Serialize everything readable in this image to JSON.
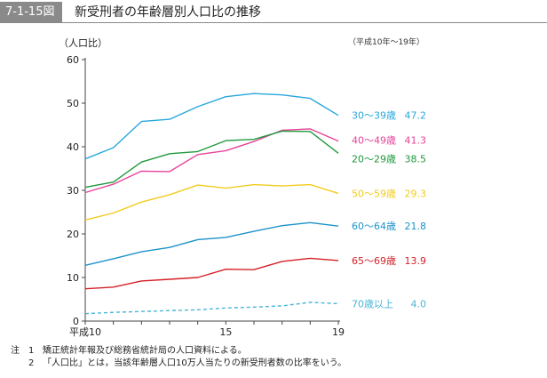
{
  "header": {
    "figure_id": "7-1-15図",
    "title": "新受刑者の年齢層別人口比の推移"
  },
  "period_note": "（平成10年～19年）",
  "chart_data": {
    "type": "line",
    "title": "新受刑者の年齢層別人口比の推移",
    "ylabel": "（人口比）",
    "ylim": [
      0,
      60
    ],
    "yticks": [
      "0",
      "10",
      "20",
      "30",
      "40",
      "50",
      "60"
    ],
    "x": [
      10,
      11,
      12,
      13,
      14,
      15,
      16,
      17,
      18,
      19
    ],
    "xticks": [
      {
        "x": 10,
        "label": "平成10"
      },
      {
        "x": 15,
        "label": "15"
      },
      {
        "x": 19,
        "label": "19"
      }
    ],
    "series": [
      {
        "name": "30～39歳",
        "end_label": "47.2",
        "color": "#2aa7dd",
        "dashed": false,
        "values": [
          37.2,
          39.8,
          45.8,
          46.3,
          49.2,
          51.5,
          52.2,
          51.9,
          51.1,
          47.2
        ]
      },
      {
        "name": "40～49歳",
        "end_label": "41.3",
        "color": "#e8429a",
        "dashed": false,
        "values": [
          29.5,
          31.4,
          34.4,
          34.3,
          38.2,
          39.1,
          41.2,
          43.8,
          44.1,
          41.3
        ]
      },
      {
        "name": "20～29歳",
        "end_label": "38.5",
        "color": "#1f9a3e",
        "dashed": false,
        "values": [
          30.7,
          31.9,
          36.5,
          38.4,
          38.9,
          41.4,
          41.7,
          43.6,
          43.5,
          38.5
        ]
      },
      {
        "name": "50～59歳",
        "end_label": "29.3",
        "color": "#f2cc1e",
        "dashed": false,
        "values": [
          23.2,
          24.8,
          27.3,
          29.0,
          31.2,
          30.5,
          31.3,
          31.0,
          31.3,
          29.3
        ]
      },
      {
        "name": "60～64歳",
        "end_label": "21.8",
        "color": "#1e93c9",
        "dashed": false,
        "values": [
          12.8,
          14.3,
          15.9,
          16.9,
          18.7,
          19.2,
          20.6,
          21.9,
          22.6,
          21.8
        ]
      },
      {
        "name": "65～69歳",
        "end_label": "13.9",
        "color": "#d42128",
        "dashed": false,
        "values": [
          7.4,
          7.8,
          9.2,
          9.6,
          10.0,
          11.9,
          11.8,
          13.7,
          14.4,
          13.9
        ]
      },
      {
        "name": "70歳以上",
        "end_label": "4.0",
        "color": "#4bb6d8",
        "dashed": true,
        "values": [
          1.7,
          2.0,
          2.2,
          2.4,
          2.6,
          3.0,
          3.2,
          3.5,
          4.3,
          4.0
        ]
      }
    ]
  },
  "notes": {
    "mark": "注",
    "items": [
      {
        "num": "1",
        "text": "矯正統計年報及び総務省統計局の人口資料による。"
      },
      {
        "num": "2",
        "text": "「人口比」とは，当該年齢層人口10万人当たりの新受刑者数の比率をいう。"
      }
    ]
  }
}
